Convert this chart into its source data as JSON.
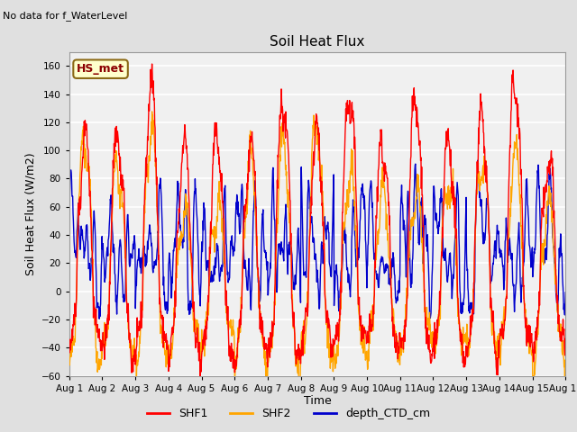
{
  "title": "Soil Heat Flux",
  "ylabel": "Soil Heat Flux (W/m2)",
  "xlabel": "Time",
  "ylim": [
    -60,
    170
  ],
  "yticks": [
    -60,
    -40,
    -20,
    0,
    20,
    40,
    60,
    80,
    100,
    120,
    140,
    160
  ],
  "note_text": "No data for f_WaterLevel",
  "legend_label": "HS_met",
  "line_colors": {
    "SHF1": "#ff0000",
    "SHF2": "#ffa500",
    "depth_CTD_cm": "#0000cc"
  },
  "line_widths": {
    "SHF1": 1.0,
    "SHF2": 1.0,
    "depth_CTD_cm": 1.0
  },
  "legend_entries": [
    "SHF1",
    "SHF2",
    "depth_CTD_cm"
  ],
  "legend_colors": [
    "#ff0000",
    "#ffa500",
    "#0000cc"
  ],
  "bg_color": "#e0e0e0",
  "plot_bg_color": "#f0f0f0",
  "grid_color": "#ffffff",
  "n_days": 15,
  "points_per_day": 96,
  "figsize": [
    6.4,
    4.8
  ],
  "dpi": 100
}
